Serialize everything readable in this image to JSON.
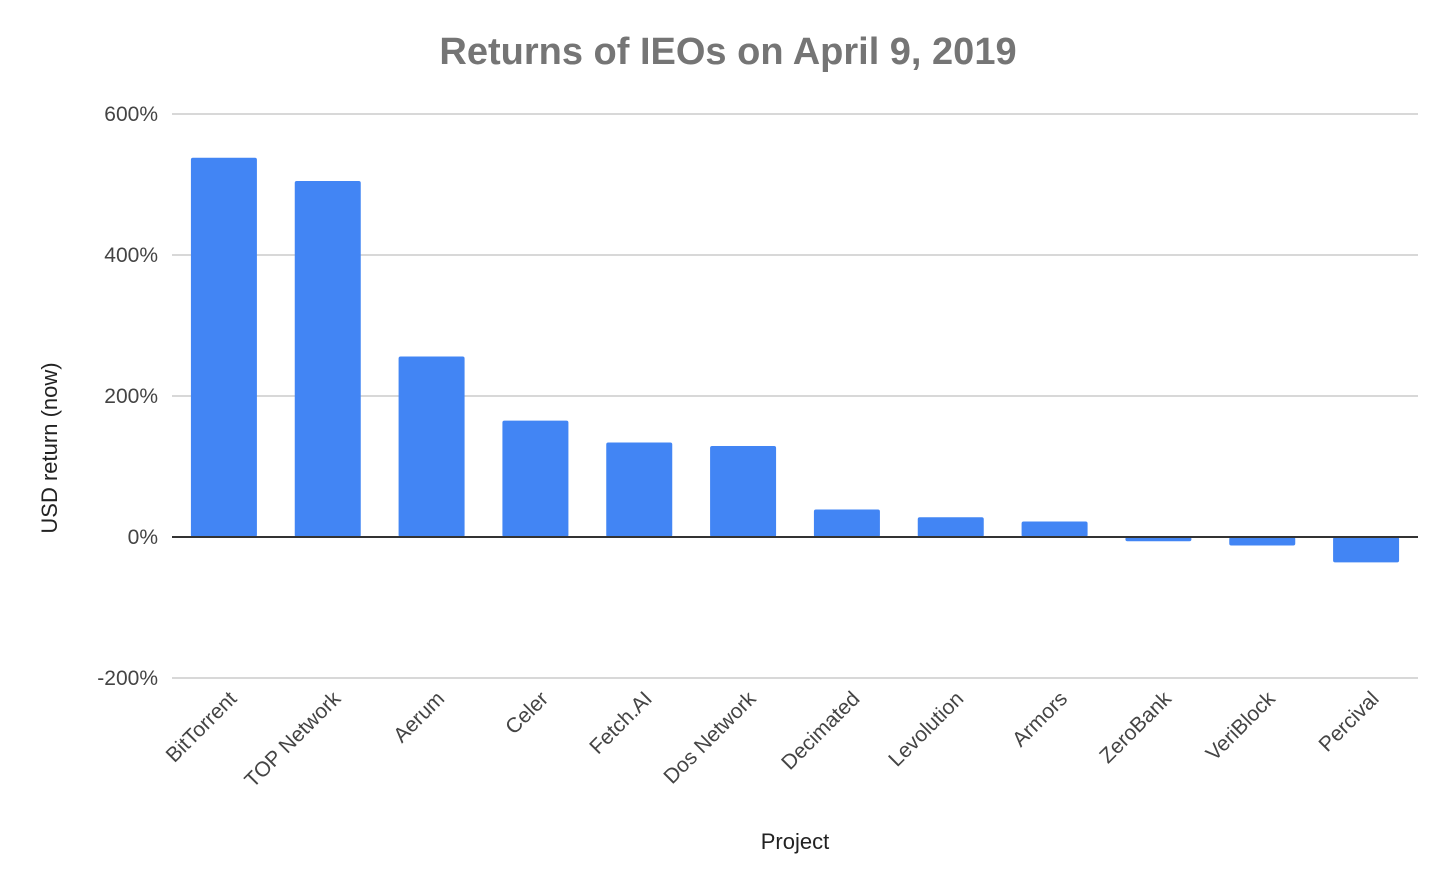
{
  "chart_data": {
    "type": "bar",
    "title": "Returns of IEOs on April 9, 2019",
    "xlabel": "Project",
    "ylabel": "USD return (now)",
    "categories": [
      "BitTorrent",
      "TOP Network",
      "Aerum",
      "Celer",
      "Fetch.AI",
      "Dos Network",
      "Decimated",
      "Levolution",
      "Armors",
      "ZeroBank",
      "VeriBlock",
      "Percival"
    ],
    "values": [
      538,
      505,
      256,
      165,
      134,
      129,
      39,
      28,
      22,
      -6,
      -12,
      -36
    ],
    "unit": "%",
    "ylim": [
      -200,
      600
    ],
    "yticks": [
      -200,
      0,
      200,
      400,
      600
    ],
    "ytick_labels": [
      "-200%",
      "0%",
      "200%",
      "400%",
      "600%"
    ],
    "bar_color": "#4285f4",
    "grid": true,
    "legend": "none"
  }
}
